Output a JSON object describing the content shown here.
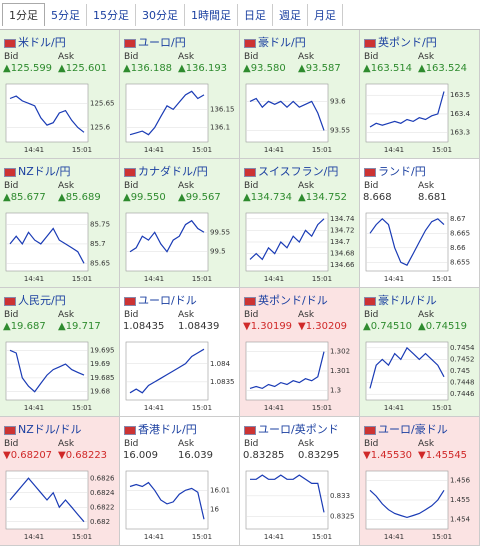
{
  "tabs": [
    "1分足",
    "5分足",
    "15分足",
    "30分足",
    "1時間足",
    "日足",
    "週足",
    "月足"
  ],
  "selected_tab": 0,
  "labels": {
    "bid": "Bid",
    "ask": "Ask"
  },
  "xticks": [
    "14:41",
    "15:01"
  ],
  "panels": [
    {
      "name": "米ドル/円",
      "state": "up",
      "bid": "▲125.599",
      "ask": "▲125.601",
      "yticks": [
        125.65,
        125.6
      ],
      "ylim": [
        125.57,
        125.69
      ],
      "values": [
        125.66,
        125.665,
        125.655,
        125.65,
        125.645,
        125.62,
        125.605,
        125.61,
        125.63,
        125.635,
        125.615,
        125.6,
        125.59
      ]
    },
    {
      "name": "ユーロ/円",
      "state": "up",
      "bid": "▲136.188",
      "ask": "▲136.193",
      "yticks": [
        136.15,
        136.1
      ],
      "ylim": [
        136.06,
        136.22
      ],
      "values": [
        136.08,
        136.085,
        136.09,
        136.08,
        136.1,
        136.13,
        136.16,
        136.15,
        136.17,
        136.19,
        136.2,
        136.18,
        136.19
      ]
    },
    {
      "name": "豪ドル/円",
      "state": "up",
      "bid": "▲93.580",
      "ask": "▲93.587",
      "yticks": [
        93.6,
        93.55
      ],
      "ylim": [
        93.53,
        93.63
      ],
      "values": [
        93.6,
        93.605,
        93.59,
        93.6,
        93.595,
        93.6,
        93.59,
        93.6,
        93.59,
        93.595,
        93.6,
        93.58,
        93.55
      ]
    },
    {
      "name": "英ポンド/円",
      "state": "up",
      "bid": "▲163.514",
      "ask": "▲163.524",
      "yticks": [
        163.5,
        163.4,
        163.3
      ],
      "ylim": [
        163.25,
        163.56
      ],
      "values": [
        163.33,
        163.35,
        163.34,
        163.35,
        163.36,
        163.35,
        163.37,
        163.36,
        163.38,
        163.37,
        163.39,
        163.4,
        163.52
      ]
    },
    {
      "name": "NZドル/円",
      "state": "up",
      "bid": "▲85.677",
      "ask": "▲85.689",
      "yticks": [
        85.75,
        85.7,
        85.65
      ],
      "ylim": [
        85.63,
        85.78
      ],
      "values": [
        85.7,
        85.72,
        85.7,
        85.73,
        85.71,
        85.7,
        85.72,
        85.74,
        85.71,
        85.7,
        85.69,
        85.68,
        85.65
      ]
    },
    {
      "name": "カナダドル/円",
      "state": "up",
      "bid": "▲99.550",
      "ask": "▲99.567",
      "yticks": [
        99.55,
        99.5
      ],
      "ylim": [
        99.45,
        99.6
      ],
      "values": [
        99.5,
        99.51,
        99.54,
        99.53,
        99.55,
        99.52,
        99.5,
        99.53,
        99.54,
        99.57,
        99.58,
        99.56,
        99.55
      ]
    },
    {
      "name": "スイスフラン/円",
      "state": "up",
      "bid": "▲134.734",
      "ask": "▲134.752",
      "yticks": [
        134.74,
        134.72,
        134.7,
        134.68,
        134.66
      ],
      "ylim": [
        134.65,
        134.75
      ],
      "values": [
        134.67,
        134.68,
        134.67,
        134.69,
        134.68,
        134.7,
        134.69,
        134.71,
        134.7,
        134.72,
        134.71,
        134.73,
        134.74
      ]
    },
    {
      "name": "ランド/円",
      "state": "flat",
      "bid": "8.668",
      "ask": "8.681",
      "yticks": [
        8.67,
        8.665,
        8.66,
        8.655
      ],
      "ylim": [
        8.652,
        8.672
      ],
      "values": [
        8.665,
        8.668,
        8.67,
        8.668,
        8.66,
        8.655,
        8.654,
        8.658,
        8.662,
        8.666,
        8.669,
        8.67,
        8.668
      ]
    },
    {
      "name": "人民元/円",
      "state": "up",
      "bid": "▲19.687",
      "ask": "▲19.717",
      "yticks": [
        19.695,
        19.69,
        19.685,
        19.68
      ],
      "ylim": [
        19.677,
        19.698
      ],
      "values": [
        19.695,
        19.694,
        19.685,
        19.682,
        19.68,
        19.683,
        19.686,
        19.688,
        19.689,
        19.69,
        19.688,
        19.687,
        19.686
      ]
    },
    {
      "name": "ユーロ/ドル",
      "state": "flat",
      "bid": "1.08435",
      "ask": "1.08439",
      "yticks": [
        1.084,
        1.0835
      ],
      "ylim": [
        1.083,
        1.0846
      ],
      "values": [
        1.0832,
        1.0833,
        1.0832,
        1.0834,
        1.0835,
        1.0836,
        1.0837,
        1.0838,
        1.0839,
        1.084,
        1.0842,
        1.0843,
        1.0844
      ]
    },
    {
      "name": "英ポンド/ドル",
      "state": "down",
      "bid": "▼1.30199",
      "ask": "▼1.30209",
      "yticks": [
        1.302,
        1.301,
        1.3
      ],
      "ylim": [
        1.2995,
        1.3025
      ],
      "values": [
        1.3001,
        1.3002,
        1.3001,
        1.3003,
        1.3002,
        1.3004,
        1.3003,
        1.3005,
        1.3004,
        1.3006,
        1.3005,
        1.3007,
        1.302
      ]
    },
    {
      "name": "豪ドル/ドル",
      "state": "up",
      "bid": "▲0.74510",
      "ask": "▲0.74519",
      "yticks": [
        0.7454,
        0.7452,
        0.745,
        0.7448,
        0.7446
      ],
      "ylim": [
        0.7445,
        0.7455
      ],
      "values": [
        0.7447,
        0.7451,
        0.7452,
        0.7451,
        0.7453,
        0.7452,
        0.7454,
        0.7453,
        0.7452,
        0.7453,
        0.7452,
        0.7451,
        0.7449
      ]
    },
    {
      "name": "NZドル/ドル",
      "state": "down",
      "bid": "▼0.68207",
      "ask": "▼0.68223",
      "yticks": [
        0.6826,
        0.6824,
        0.6822,
        0.682
      ],
      "ylim": [
        0.6819,
        0.6827
      ],
      "values": [
        0.6823,
        0.6824,
        0.6825,
        0.6826,
        0.6825,
        0.6824,
        0.6823,
        0.6824,
        0.6822,
        0.6823,
        0.6822,
        0.6821,
        0.682
      ]
    },
    {
      "name": "香港ドル/円",
      "state": "flat",
      "bid": "16.009",
      "ask": "16.039",
      "yticks": [
        16.01,
        16
      ],
      "ylim": [
        15.99,
        16.02
      ],
      "values": [
        16.012,
        16.013,
        16.012,
        16.014,
        16.01,
        16.005,
        16.003,
        16.004,
        16.008,
        16.01,
        16.011,
        16.009,
        15.995
      ]
    },
    {
      "name": "ユーロ/英ポンド",
      "state": "flat",
      "bid": "0.83285",
      "ask": "0.83295",
      "yticks": [
        0.833,
        0.8325
      ],
      "ylim": [
        0.8322,
        0.8336
      ],
      "values": [
        0.8334,
        0.8334,
        0.8335,
        0.8334,
        0.8334,
        0.8335,
        0.8334,
        0.8334,
        0.8335,
        0.8334,
        0.8333,
        0.8333,
        0.8326
      ]
    },
    {
      "name": "ユーロ/豪ドル",
      "state": "down",
      "bid": "▼1.45530",
      "ask": "▼1.45545",
      "yticks": [
        1.456,
        1.455,
        1.454
      ],
      "ylim": [
        1.4535,
        1.4565
      ],
      "values": [
        1.4555,
        1.4552,
        1.4548,
        1.4545,
        1.4543,
        1.4542,
        1.4541,
        1.4542,
        1.4543,
        1.4545,
        1.4547,
        1.455,
        1.4555
      ]
    }
  ]
}
